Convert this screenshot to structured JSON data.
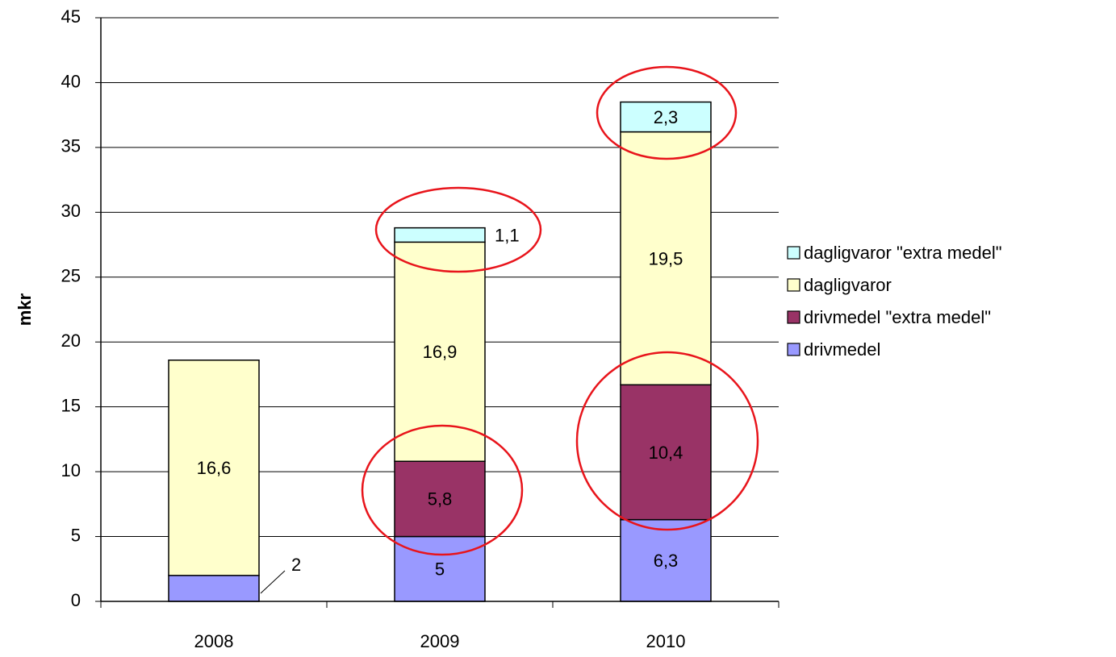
{
  "chart_data": {
    "type": "stacked_bar",
    "y_label": "mkr",
    "categories": [
      "2008",
      "2009",
      "2010"
    ],
    "series": [
      {
        "name": "drivmedel",
        "color": "#9999ff",
        "values": [
          2,
          5,
          6.3
        ],
        "value_labels": [
          "2",
          "5",
          "6,3"
        ]
      },
      {
        "name": "drivmedel \"extra medel\"",
        "color": "#993366",
        "values": [
          null,
          5.8,
          10.4
        ],
        "value_labels": [
          null,
          "5,8",
          "10,4"
        ]
      },
      {
        "name": "dagligvaror",
        "color": "#ffffcc",
        "values": [
          16.6,
          16.9,
          19.5
        ],
        "value_labels": [
          "16,6",
          "16,9",
          "19,5"
        ]
      },
      {
        "name": "dagligvaror \"extra medel\"",
        "color": "#ccffff",
        "values": [
          null,
          1.1,
          2.3
        ],
        "value_labels": [
          null,
          "1,1",
          "2,3"
        ]
      }
    ],
    "ylim": [
      0,
      45
    ],
    "yticks": [
      0,
      5,
      10,
      15,
      20,
      25,
      30,
      35,
      40,
      45
    ],
    "grid": true,
    "legend": "right"
  }
}
